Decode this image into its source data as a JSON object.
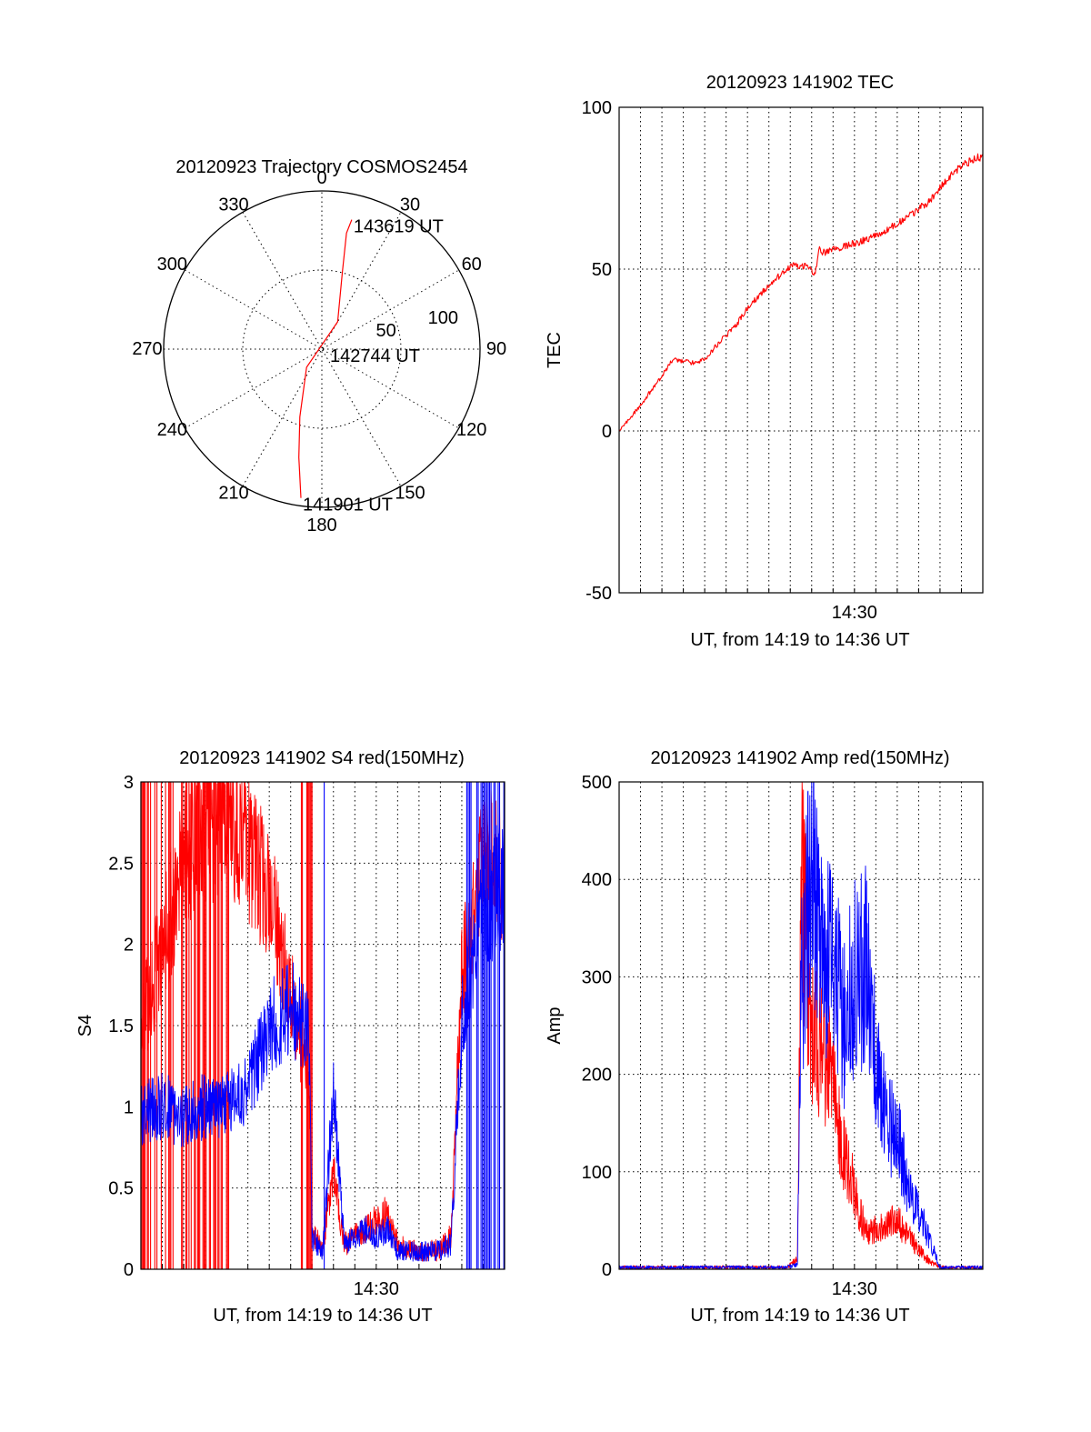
{
  "chart_data": [
    {
      "type": "polar",
      "title": "20120923 Trajectory COSMOS2454",
      "angle_labels": [
        "0",
        "30",
        "60",
        "90",
        "120",
        "150",
        "180",
        "210",
        "240",
        "270",
        "300",
        "330"
      ],
      "radius_labels": [
        "50",
        "100"
      ],
      "rlim": [
        0,
        100
      ],
      "grid": true,
      "series": [
        {
          "color": "#ff0000",
          "points": [
            {
              "az": 188,
              "r": 95
            },
            {
              "az": 192,
              "r": 70
            },
            {
              "az": 198,
              "r": 45
            },
            {
              "az": 220,
              "r": 15
            },
            {
              "az": 30,
              "r": 20
            },
            {
              "az": 15,
              "r": 50
            },
            {
              "az": 12,
              "r": 75
            },
            {
              "az": 13,
              "r": 84
            }
          ]
        }
      ],
      "annotations": [
        {
          "text": "143619 UT",
          "az": 13,
          "r": 84
        },
        {
          "text": "142744 UT",
          "az": 90,
          "r": 4
        },
        {
          "text": "141901 UT",
          "az": 188,
          "r": 95
        }
      ]
    },
    {
      "type": "line",
      "title": "20120923 141902 TEC",
      "xlabel": "UT, from 14:19 to 14:36 UT",
      "ylabel": "TEC",
      "xlim": [
        "14:19",
        "14:36"
      ],
      "ylim": [
        -50,
        100
      ],
      "yticks": [
        -50,
        0,
        50,
        100
      ],
      "xtick_labels": [
        {
          "at": "14:30",
          "label": "14:30"
        }
      ],
      "grid": true,
      "series": [
        {
          "color": "#ff0000",
          "x": [
            "14:19:00",
            "14:20:00",
            "14:21:00",
            "14:21:30",
            "14:22:30",
            "14:23:00",
            "14:23:30",
            "14:24:30",
            "14:25:00",
            "14:26:00",
            "14:27:00",
            "14:27:50",
            "14:28:10",
            "14:28:20",
            "14:28:30",
            "14:29:30",
            "14:30:30",
            "14:31:30",
            "14:32:30",
            "14:33:30",
            "14:34:30",
            "14:35:00",
            "14:36:00"
          ],
          "y": [
            0,
            8,
            17,
            22,
            21,
            22,
            26,
            33,
            38,
            45,
            51,
            51,
            48,
            57,
            55,
            57,
            59,
            62,
            66,
            71,
            79,
            82,
            85
          ]
        }
      ]
    },
    {
      "type": "line",
      "title": "20120923 141902 S4 red(150MHz)",
      "xlabel": "UT, from 14:19 to 14:36 UT",
      "ylabel": "S4",
      "xlim": [
        "14:19",
        "14:36"
      ],
      "ylim": [
        0,
        3
      ],
      "yticks": [
        "0",
        "0.5",
        "1",
        "1.5",
        "2",
        "2.5",
        "3"
      ],
      "xtick_labels": [
        {
          "at": "14:30",
          "label": "14:30"
        }
      ],
      "grid": true,
      "series": [
        {
          "color": "#ff0000",
          "x": [
            "14:19:00",
            "14:20:00",
            "14:21:00",
            "14:22:00",
            "14:23:00",
            "14:24:00",
            "14:25:00",
            "14:26:00",
            "14:26:50",
            "14:27:00",
            "14:27:30",
            "14:28:00",
            "14:28:30",
            "14:29:00",
            "14:29:30",
            "14:30:00",
            "14:30:30",
            "14:31:00",
            "14:32:00",
            "14:33:00",
            "14:33:30",
            "14:34:00",
            "14:35:00",
            "14:36:00"
          ],
          "y": [
            1.5,
            2.0,
            2.5,
            2.7,
            2.8,
            2.6,
            2.3,
            1.7,
            1.2,
            0.2,
            0.15,
            0.6,
            0.15,
            0.2,
            0.25,
            0.3,
            0.35,
            0.15,
            0.1,
            0.12,
            0.2,
            1.8,
            2.6,
            2.4
          ]
        },
        {
          "color": "#0000ff",
          "x": [
            "14:19:00",
            "14:20:00",
            "14:21:00",
            "14:22:00",
            "14:23:00",
            "14:24:00",
            "14:25:00",
            "14:26:00",
            "14:26:50",
            "14:27:00",
            "14:27:30",
            "14:28:00",
            "14:28:30",
            "14:29:00",
            "14:29:30",
            "14:30:00",
            "14:30:30",
            "14:31:00",
            "14:32:00",
            "14:33:00",
            "14:33:30",
            "14:34:00",
            "14:35:00",
            "14:36:00"
          ],
          "y": [
            0.95,
            1.0,
            0.95,
            1.0,
            1.0,
            1.1,
            1.5,
            1.6,
            1.5,
            0.2,
            0.1,
            1.1,
            0.15,
            0.2,
            0.25,
            0.2,
            0.25,
            0.12,
            0.1,
            0.12,
            0.15,
            1.5,
            2.2,
            2.4
          ]
        }
      ]
    },
    {
      "type": "line",
      "title": "20120923 141902 Amp red(150MHz)",
      "xlabel": "UT, from 14:19 to 14:36 UT",
      "ylabel": "Amp",
      "xlim": [
        "14:19",
        "14:36"
      ],
      "ylim": [
        0,
        500
      ],
      "yticks": [
        0,
        100,
        200,
        300,
        400,
        500
      ],
      "xtick_labels": [
        {
          "at": "14:30",
          "label": "14:30"
        }
      ],
      "grid": true,
      "series": [
        {
          "color": "#ff0000",
          "x": [
            "14:19:00",
            "14:26:50",
            "14:27:20",
            "14:27:30",
            "14:28:00",
            "14:28:30",
            "14:29:00",
            "14:29:30",
            "14:30:00",
            "14:30:30",
            "14:31:00",
            "14:32:00",
            "14:33:00",
            "14:33:30",
            "14:34:00",
            "14:36:00"
          ],
          "y": [
            2,
            2,
            10,
            420,
            230,
            240,
            180,
            120,
            80,
            40,
            40,
            50,
            20,
            8,
            2,
            2
          ]
        },
        {
          "color": "#0000ff",
          "x": [
            "14:19:00",
            "14:26:50",
            "14:27:20",
            "14:27:30",
            "14:28:00",
            "14:28:30",
            "14:29:00",
            "14:29:30",
            "14:30:00",
            "14:30:30",
            "14:31:00",
            "14:31:30",
            "14:32:00",
            "14:32:30",
            "14:33:00",
            "14:33:30",
            "14:34:00",
            "14:36:00"
          ],
          "y": [
            2,
            2,
            5,
            280,
            425,
            300,
            340,
            250,
            300,
            320,
            220,
            150,
            140,
            80,
            60,
            30,
            2,
            2
          ]
        }
      ]
    }
  ]
}
